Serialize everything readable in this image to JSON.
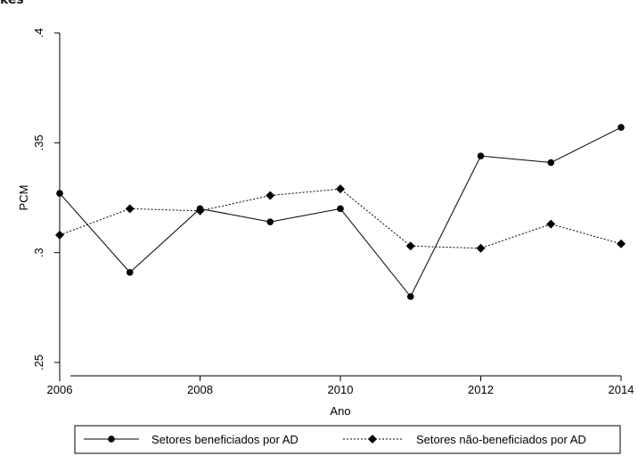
{
  "header_fragment": "kes",
  "chart_data": {
    "type": "line",
    "title": "",
    "xlabel": "Ano",
    "ylabel": "PCM",
    "x": [
      2006,
      2007,
      2008,
      2009,
      2010,
      2011,
      2012,
      2013,
      2014
    ],
    "xlim": [
      2006,
      2014
    ],
    "ylim": [
      0.25,
      0.4
    ],
    "xticks": [
      2006,
      2008,
      2010,
      2012,
      2014
    ],
    "xtick_labels": [
      "2006",
      "2008",
      "2010",
      "2012",
      "2014"
    ],
    "yticks": [
      0.25,
      0.3,
      0.35,
      0.4
    ],
    "ytick_labels": [
      ".25",
      ".3",
      ".35",
      ".4"
    ],
    "grid": false,
    "legend_position": "bottom",
    "series": [
      {
        "name": "Setores beneficiados por AD",
        "values": [
          0.327,
          0.291,
          0.32,
          0.314,
          0.32,
          0.28,
          0.344,
          0.341,
          0.357
        ],
        "line_style": "solid",
        "marker": "circle",
        "color": "#000000"
      },
      {
        "name": "Setores não-beneficiados por AD",
        "values": [
          0.308,
          0.32,
          0.319,
          0.326,
          0.329,
          0.303,
          0.302,
          0.313,
          0.304
        ],
        "line_style": "dotted",
        "marker": "diamond",
        "color": "#000000"
      }
    ]
  }
}
